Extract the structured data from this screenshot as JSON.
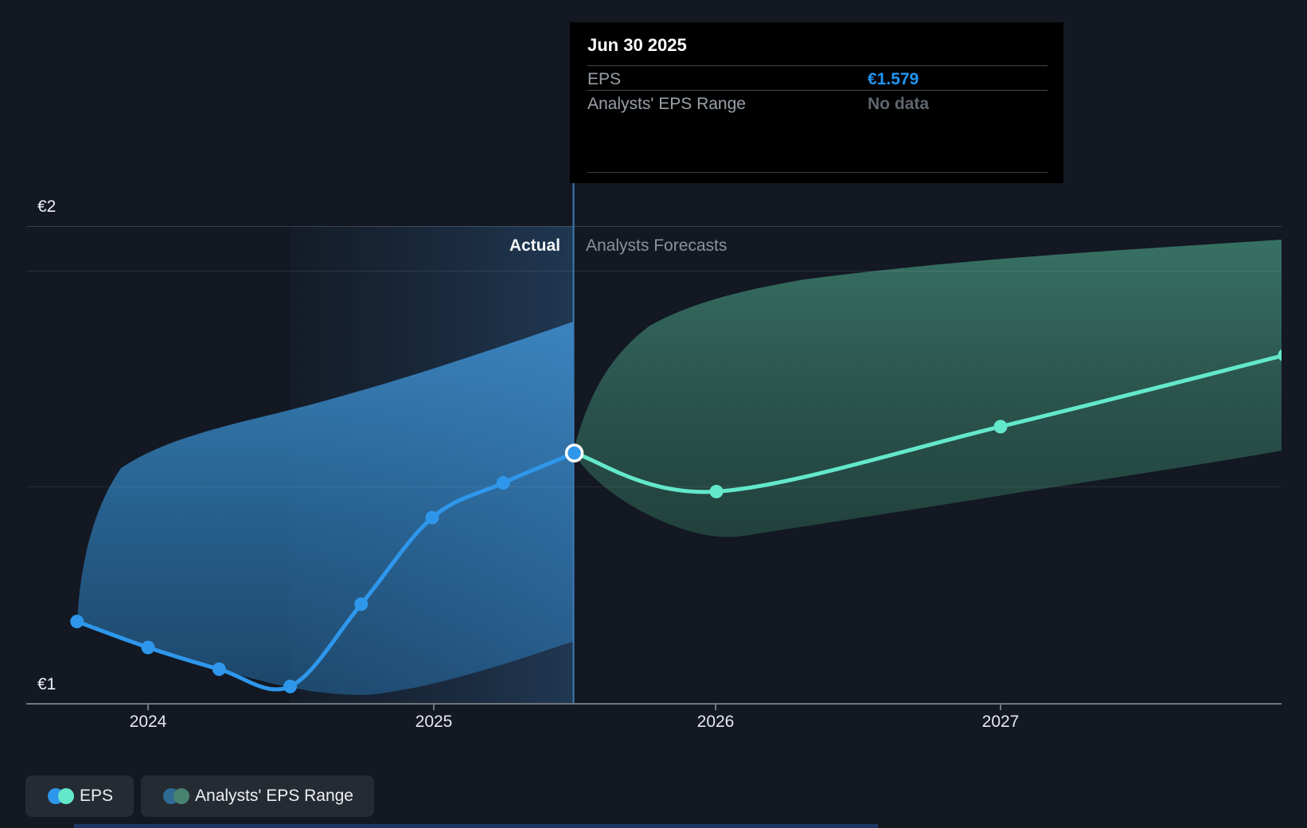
{
  "header": {
    "actual_label": "Actual",
    "forecast_label": "Analysts Forecasts"
  },
  "tooltip": {
    "title": "Jun 30 2025",
    "rows": [
      {
        "label": "EPS",
        "value": "€1.579",
        "value_color": "#2196f3"
      },
      {
        "label": "Analysts' EPS Range",
        "value": "No data",
        "value_color": "#5f656d"
      }
    ]
  },
  "y_axis": {
    "labels": [
      {
        "text": "€2",
        "value": 2
      },
      {
        "text": "€1",
        "value": 1
      }
    ]
  },
  "x_axis": {
    "labels": [
      "2024",
      "2025",
      "2026",
      "2027"
    ]
  },
  "legend": [
    {
      "label": "EPS",
      "dot_colors": [
        "#2e97ec",
        "#63e8ca"
      ]
    },
    {
      "label": "Analysts' EPS Range",
      "dot_colors": [
        "#2f6a93",
        "#48836f"
      ]
    }
  ],
  "chart_data": {
    "type": "line",
    "title": "EPS: Actual vs Analysts Forecasts",
    "currency": "EUR",
    "ylim": [
      0.95,
      2.12
    ],
    "y_gridlines": [
      1,
      1.5,
      2
    ],
    "grid": true,
    "legend_position": "bottom-left",
    "x_ticks": [
      {
        "label": "2024",
        "t": 0
      },
      {
        "label": "2025",
        "t": 1
      },
      {
        "label": "2026",
        "t": 2
      },
      {
        "label": "2027",
        "t": 3
      }
    ],
    "divider_date": "Jun 30 2025",
    "divider_t": 1.5,
    "highlight_window_t": [
      0.5,
      1.5
    ],
    "series": [
      {
        "name": "EPS (actual)",
        "color": "#2e97ec",
        "points": [
          {
            "date": "Sep 30 2023",
            "t": -0.25,
            "value": 1.19
          },
          {
            "date": "Dec 31 2023",
            "t": 0.0,
            "value": 1.13
          },
          {
            "date": "Mar 31 2024",
            "t": 0.25,
            "value": 1.08
          },
          {
            "date": "Jun 30 2024",
            "t": 0.5,
            "value": 1.04
          },
          {
            "date": "Sep 30 2024",
            "t": 0.75,
            "value": 1.23
          },
          {
            "date": "Dec 31 2024",
            "t": 1.0,
            "value": 1.43
          },
          {
            "date": "Mar 31 2025",
            "t": 1.25,
            "value": 1.51
          },
          {
            "date": "Jun 30 2025",
            "t": 1.5,
            "value": 1.579,
            "current": true
          }
        ]
      },
      {
        "name": "EPS (analysts forecast)",
        "color": "#63e8ca",
        "points": [
          {
            "date": "Jun 30 2025",
            "t": 1.5,
            "value": 1.579
          },
          {
            "date": "Dec 31 2025",
            "t": 2.0,
            "value": 1.49
          },
          {
            "date": "Dec 31 2026",
            "t": 3.0,
            "value": 1.64
          },
          {
            "date": "Dec 31 2027",
            "t": 4.0,
            "value": 1.805
          }
        ]
      }
    ],
    "range_series": {
      "name": "Analysts' EPS Range",
      "points": [
        {
          "t": 1.5,
          "low": 1.579,
          "high": 1.579
        },
        {
          "t": 2.0,
          "low": 1.38,
          "high": 1.94
        },
        {
          "t": 3.0,
          "low": 1.49,
          "high": 2.02
        },
        {
          "t": 4.0,
          "low": 1.58,
          "high": 2.07
        }
      ]
    }
  }
}
